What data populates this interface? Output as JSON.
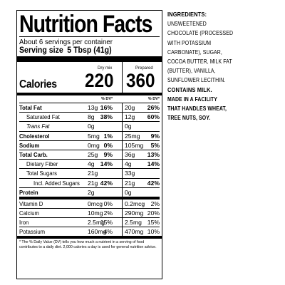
{
  "label": {
    "title": "Nutrition Facts",
    "servings": "About 6 servings per container",
    "serving_size_label": "Serving size",
    "serving_size_value": "5 Tbsp (41g)",
    "col1_head": "Dry mix",
    "col2_head": "Prepared",
    "calories_label": "Calories",
    "calories_dry": "220",
    "calories_prepared": "360",
    "dv_head": "% DV*",
    "rows": [
      {
        "label": "Total Fat",
        "bold": true,
        "indent": 0,
        "a1": "13g",
        "p1": "16%",
        "a2": "20g",
        "p2": "26%"
      },
      {
        "label": "Saturated Fat",
        "bold": false,
        "indent": 1,
        "a1": "8g",
        "p1": "38%",
        "a2": "12g",
        "p2": "60%"
      },
      {
        "label": "Trans Fat",
        "bold": false,
        "indent": 1,
        "a1": "0g",
        "p1": "",
        "a2": "0g",
        "p2": ""
      },
      {
        "label": "Cholesterol",
        "bold": true,
        "indent": 0,
        "a1": "5mg",
        "p1": "1%",
        "a2": "25mg",
        "p2": "9%"
      },
      {
        "label": "Sodium",
        "bold": true,
        "indent": 0,
        "a1": "0mg",
        "p1": "0%",
        "a2": "105mg",
        "p2": "5%"
      },
      {
        "label": "Total Carb.",
        "bold": true,
        "indent": 0,
        "a1": "25g",
        "p1": "9%",
        "a2": "36g",
        "p2": "13%"
      },
      {
        "label": "Dietary Fiber",
        "bold": false,
        "indent": 1,
        "a1": "4g",
        "p1": "14%",
        "a2": "4g",
        "p2": "14%"
      },
      {
        "label": "Total Sugars",
        "bold": false,
        "indent": 1,
        "a1": "21g",
        "p1": "",
        "a2": "33g",
        "p2": ""
      },
      {
        "label": "Incl. Added Sugars",
        "bold": false,
        "indent": 2,
        "a1": "21g",
        "p1": "42%",
        "a2": "21g",
        "p2": "42%"
      },
      {
        "label": "Protein",
        "bold": true,
        "indent": 0,
        "a1": "2g",
        "p1": "",
        "a2": "0g",
        "p2": ""
      }
    ],
    "vitamins": [
      {
        "label": "Vitamin D",
        "a1": "0mcg",
        "p1": "0%",
        "a2": "0.2mcg",
        "p2": "2%"
      },
      {
        "label": "Calcium",
        "a1": "10mg",
        "p1": "2%",
        "a2": "290mg",
        "p2": "20%"
      },
      {
        "label": "Iron",
        "a1": "2.5mg",
        "p1": "15%",
        "a2": "2.5mg",
        "p2": "15%"
      },
      {
        "label": "Potassium",
        "a1": "160mg",
        "p1": "4%",
        "a2": "470mg",
        "p2": "10%"
      }
    ],
    "footnote_1": "* The % Daily Value (DV) tells you how much a nutrient in a serving of food",
    "footnote_2": "contributes to a daily diet. 2,000 calories a day is used for general nutrition advice."
  },
  "ingredients": {
    "heading": "INGREDIENTS:",
    "lines": [
      "UNSWEETENED",
      "CHOCOLATE (PROCESSED",
      "WITH POTASSIUM",
      "CARBONATE), SUGAR,",
      "COCOA BUTTER, MILK FAT",
      "(BUTTER), VANILLA,",
      "SUNFLOWER LECITHIN."
    ],
    "contains": "CONTAINS MILK.",
    "facility_lines": [
      "MADE IN A FACILITY",
      "THAT HANDLES WHEAT,",
      "TREE NUTS, SOY."
    ]
  }
}
